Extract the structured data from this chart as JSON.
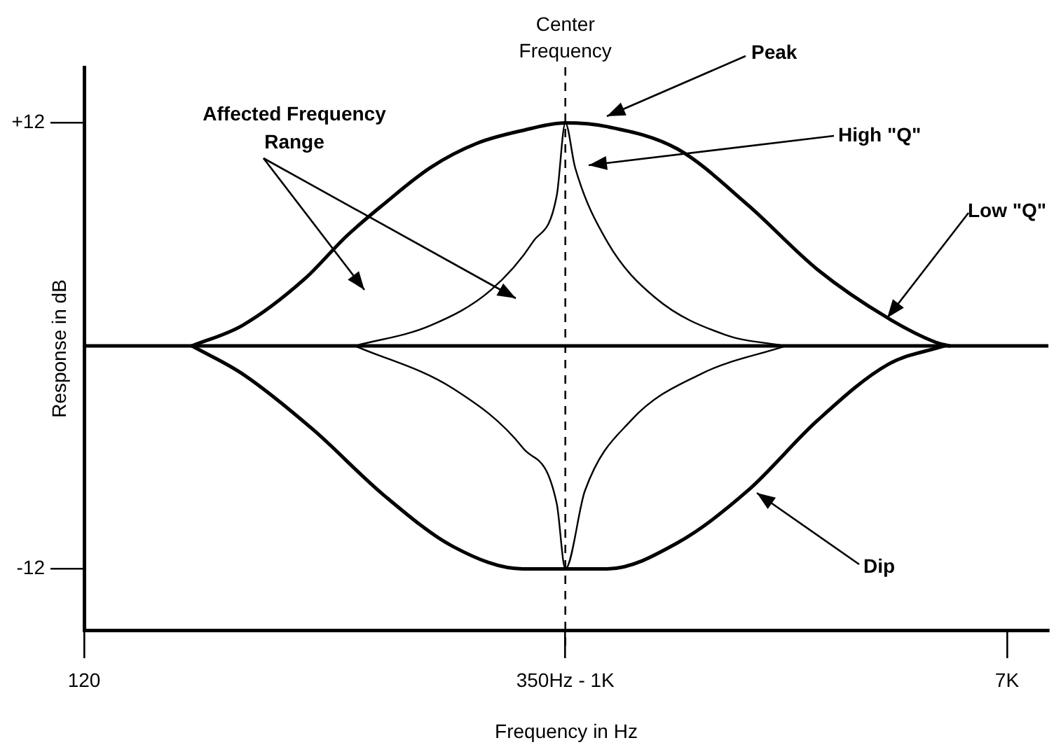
{
  "chart_data": {
    "type": "line",
    "xlabel": "Frequency in Hz",
    "ylabel": "Response in dB",
    "log": "x",
    "grid": false,
    "marker": "none",
    "line_style": "solid",
    "xlim": [
      120,
      8400
    ],
    "ylim": [
      -15.3,
      15
    ],
    "xticks": [
      120,
      {
        "value": 1000,
        "label": "350Hz - 1K"
      },
      {
        "value": 7000,
        "label": "7K"
      }
    ],
    "yticks": [
      {
        "value": 12,
        "label": "+12"
      },
      -12
    ],
    "series": [
      {
        "type": "line",
        "color": "#000000",
        "x": [
          120,
          8400
        ],
        "values": [
          0,
          0
        ]
      },
      {
        "type": "line",
        "color": "#000000",
        "x": [
          193,
          241,
          317,
          381,
          448,
          552,
          677,
          830,
          1000,
          1203,
          1639,
          2232,
          3040,
          4141,
          5109,
          5435
        ],
        "values": [
          0,
          1.1,
          3.6,
          5.9,
          7.6,
          9.6,
          10.9,
          11.6,
          12,
          11.8,
          10.6,
          7.6,
          4.1,
          1.5,
          0.2,
          0
        ]
      },
      {
        "type": "line",
        "color": "#000000",
        "x": [
          193,
          241,
          329,
          448,
          610,
          830,
          1000,
          1203,
          1639,
          2232,
          3040,
          4141,
          5302
        ],
        "values": [
          0,
          -1.5,
          -4.5,
          -8.0,
          -10.8,
          -12,
          -12,
          -12,
          -10.6,
          -7.8,
          -4.0,
          -1.0,
          0
        ]
      },
      {
        "type": "line",
        "color": "#000000",
        "x": [
          396,
          552,
          720,
          867,
          963,
          1000,
          1044,
          1203,
          1485,
          2022,
          2638
        ],
        "values": [
          0,
          1.1,
          3.0,
          5.6,
          8.1,
          12,
          9.6,
          5.6,
          2.6,
          0.6,
          0
        ]
      },
      {
        "type": "line",
        "color": "#000000",
        "x": [
          396,
          610,
          830,
          963,
          1000,
          1090,
          1337,
          1820,
          2638
        ],
        "values": [
          0,
          -2.3,
          -5.5,
          -8.5,
          -12,
          -7.8,
          -4.0,
          -1.5,
          0
        ]
      }
    ],
    "ref_lines": [
      {
        "axis": "x",
        "value": 1000,
        "label": "Center Frequency",
        "line_style": "dashed",
        "color": "#000000"
      }
    ],
    "annotations": [
      "Affected Frequency Range",
      "Peak",
      "High \"Q\"",
      {
        "text": "Low \"Q\"",
        "x": 4141,
        "y": 1.5
      },
      "Dip"
    ]
  }
}
